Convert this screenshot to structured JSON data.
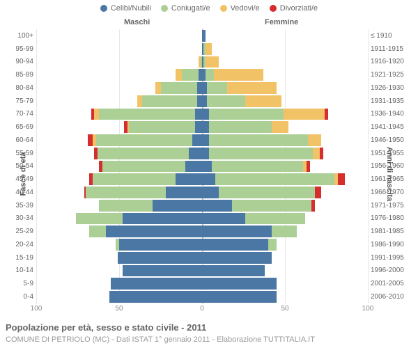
{
  "type": "population-pyramid",
  "colors": {
    "celibi": "#4b77a5",
    "coniugati": "#abcf94",
    "vedovi": "#f2c267",
    "divorziati": "#d62e2c",
    "grid": "#e7e7e7",
    "zero_line": "#bbbbbb",
    "bg": "#ffffff",
    "text": "#666666"
  },
  "legend": [
    {
      "key": "celibi",
      "label": "Celibi/Nubili"
    },
    {
      "key": "coniugati",
      "label": "Coniugati/e"
    },
    {
      "key": "vedovi",
      "label": "Vedovi/e"
    },
    {
      "key": "divorziati",
      "label": "Divorziati/e"
    }
  ],
  "gender_labels": {
    "left": "Maschi",
    "right": "Femmine"
  },
  "y_title_left": "Fasce di età",
  "y_title_right": "Anni di nascita",
  "x_axis": {
    "max": 100,
    "ticks": [
      100,
      50,
      0,
      50,
      100
    ]
  },
  "title": "Popolazione per età, sesso e stato civile - 2011",
  "subtitle": "COMUNE DI PETRIOLO (MC) - Dati ISTAT 1° gennaio 2011 - Elaborazione TUTTITALIA.IT",
  "font": {
    "legend": 11,
    "row_label": 10,
    "axis": 10,
    "title": 13,
    "subtitle": 11
  },
  "rows": [
    {
      "age": "100+",
      "birth": "≤ 1910",
      "m": {
        "celibi": 0,
        "coniugati": 0,
        "vedovi": 0,
        "divorziati": 0
      },
      "f": {
        "celibi": 2,
        "coniugati": 0,
        "vedovi": 0,
        "divorziati": 0
      }
    },
    {
      "age": "95-99",
      "birth": "1911-1915",
      "m": {
        "celibi": 0,
        "coniugati": 0,
        "vedovi": 0,
        "divorziati": 0
      },
      "f": {
        "celibi": 1,
        "coniugati": 1,
        "vedovi": 4,
        "divorziati": 0
      }
    },
    {
      "age": "90-94",
      "birth": "1916-1920",
      "m": {
        "celibi": 0,
        "coniugati": 1,
        "vedovi": 1,
        "divorziati": 0
      },
      "f": {
        "celibi": 1,
        "coniugati": 1,
        "vedovi": 8,
        "divorziati": 0
      }
    },
    {
      "age": "85-89",
      "birth": "1921-1925",
      "m": {
        "celibi": 2,
        "coniugati": 10,
        "vedovi": 4,
        "divorziati": 0
      },
      "f": {
        "celibi": 2,
        "coniugati": 5,
        "vedovi": 30,
        "divorziati": 0
      }
    },
    {
      "age": "80-84",
      "birth": "1926-1930",
      "m": {
        "celibi": 3,
        "coniugati": 22,
        "vedovi": 3,
        "divorziati": 0
      },
      "f": {
        "celibi": 3,
        "coniugati": 12,
        "vedovi": 30,
        "divorziati": 0
      }
    },
    {
      "age": "75-79",
      "birth": "1931-1935",
      "m": {
        "celibi": 3,
        "coniugati": 33,
        "vedovi": 3,
        "divorziati": 0
      },
      "f": {
        "celibi": 3,
        "coniugati": 23,
        "vedovi": 22,
        "divorziati": 0
      }
    },
    {
      "age": "70-74",
      "birth": "1936-1940",
      "m": {
        "celibi": 4,
        "coniugati": 58,
        "vedovi": 3,
        "divorziati": 2
      },
      "f": {
        "celibi": 4,
        "coniugati": 45,
        "vedovi": 25,
        "divorziati": 2
      }
    },
    {
      "age": "65-69",
      "birth": "1941-1945",
      "m": {
        "celibi": 4,
        "coniugati": 40,
        "vedovi": 1,
        "divorziati": 2
      },
      "f": {
        "celibi": 4,
        "coniugati": 38,
        "vedovi": 10,
        "divorziati": 0
      }
    },
    {
      "age": "60-64",
      "birth": "1946-1950",
      "m": {
        "celibi": 6,
        "coniugati": 58,
        "vedovi": 2,
        "divorziati": 3
      },
      "f": {
        "celibi": 4,
        "coniugati": 60,
        "vedovi": 8,
        "divorziati": 0
      }
    },
    {
      "age": "55-59",
      "birth": "1951-1955",
      "m": {
        "celibi": 8,
        "coniugati": 55,
        "vedovi": 0,
        "divorziati": 2
      },
      "f": {
        "celibi": 4,
        "coniugati": 63,
        "vedovi": 4,
        "divorziati": 2
      }
    },
    {
      "age": "50-54",
      "birth": "1956-1960",
      "m": {
        "celibi": 10,
        "coniugati": 50,
        "vedovi": 0,
        "divorziati": 2
      },
      "f": {
        "celibi": 6,
        "coniugati": 55,
        "vedovi": 2,
        "divorziati": 2
      }
    },
    {
      "age": "45-49",
      "birth": "1961-1965",
      "m": {
        "celibi": 16,
        "coniugati": 50,
        "vedovi": 0,
        "divorziati": 2
      },
      "f": {
        "celibi": 8,
        "coniugati": 72,
        "vedovi": 2,
        "divorziati": 4
      }
    },
    {
      "age": "40-44",
      "birth": "1966-1970",
      "m": {
        "celibi": 22,
        "coniugati": 48,
        "vedovi": 0,
        "divorziati": 1
      },
      "f": {
        "celibi": 10,
        "coniugati": 58,
        "vedovi": 0,
        "divorziati": 4
      }
    },
    {
      "age": "35-39",
      "birth": "1971-1975",
      "m": {
        "celibi": 30,
        "coniugati": 32,
        "vedovi": 0,
        "divorziati": 0
      },
      "f": {
        "celibi": 18,
        "coniugati": 48,
        "vedovi": 0,
        "divorziati": 2
      }
    },
    {
      "age": "30-34",
      "birth": "1976-1980",
      "m": {
        "celibi": 48,
        "coniugati": 28,
        "vedovi": 0,
        "divorziati": 0
      },
      "f": {
        "celibi": 26,
        "coniugati": 36,
        "vedovi": 0,
        "divorziati": 0
      }
    },
    {
      "age": "25-29",
      "birth": "1981-1985",
      "m": {
        "celibi": 58,
        "coniugati": 10,
        "vedovi": 0,
        "divorziati": 0
      },
      "f": {
        "celibi": 42,
        "coniugati": 15,
        "vedovi": 0,
        "divorziati": 0
      }
    },
    {
      "age": "20-24",
      "birth": "1986-1990",
      "m": {
        "celibi": 50,
        "coniugati": 2,
        "vedovi": 0,
        "divorziati": 0
      },
      "f": {
        "celibi": 40,
        "coniugati": 5,
        "vedovi": 0,
        "divorziati": 0
      }
    },
    {
      "age": "15-19",
      "birth": "1991-1995",
      "m": {
        "celibi": 51,
        "coniugati": 0,
        "vedovi": 0,
        "divorziati": 0
      },
      "f": {
        "celibi": 42,
        "coniugati": 0,
        "vedovi": 0,
        "divorziati": 0
      }
    },
    {
      "age": "10-14",
      "birth": "1996-2000",
      "m": {
        "celibi": 48,
        "coniugati": 0,
        "vedovi": 0,
        "divorziati": 0
      },
      "f": {
        "celibi": 38,
        "coniugati": 0,
        "vedovi": 0,
        "divorziati": 0
      }
    },
    {
      "age": "5-9",
      "birth": "2001-2005",
      "m": {
        "celibi": 55,
        "coniugati": 0,
        "vedovi": 0,
        "divorziati": 0
      },
      "f": {
        "celibi": 45,
        "coniugati": 0,
        "vedovi": 0,
        "divorziati": 0
      }
    },
    {
      "age": "0-4",
      "birth": "2006-2010",
      "m": {
        "celibi": 56,
        "coniugati": 0,
        "vedovi": 0,
        "divorziati": 0
      },
      "f": {
        "celibi": 45,
        "coniugati": 0,
        "vedovi": 0,
        "divorziati": 0
      }
    }
  ]
}
